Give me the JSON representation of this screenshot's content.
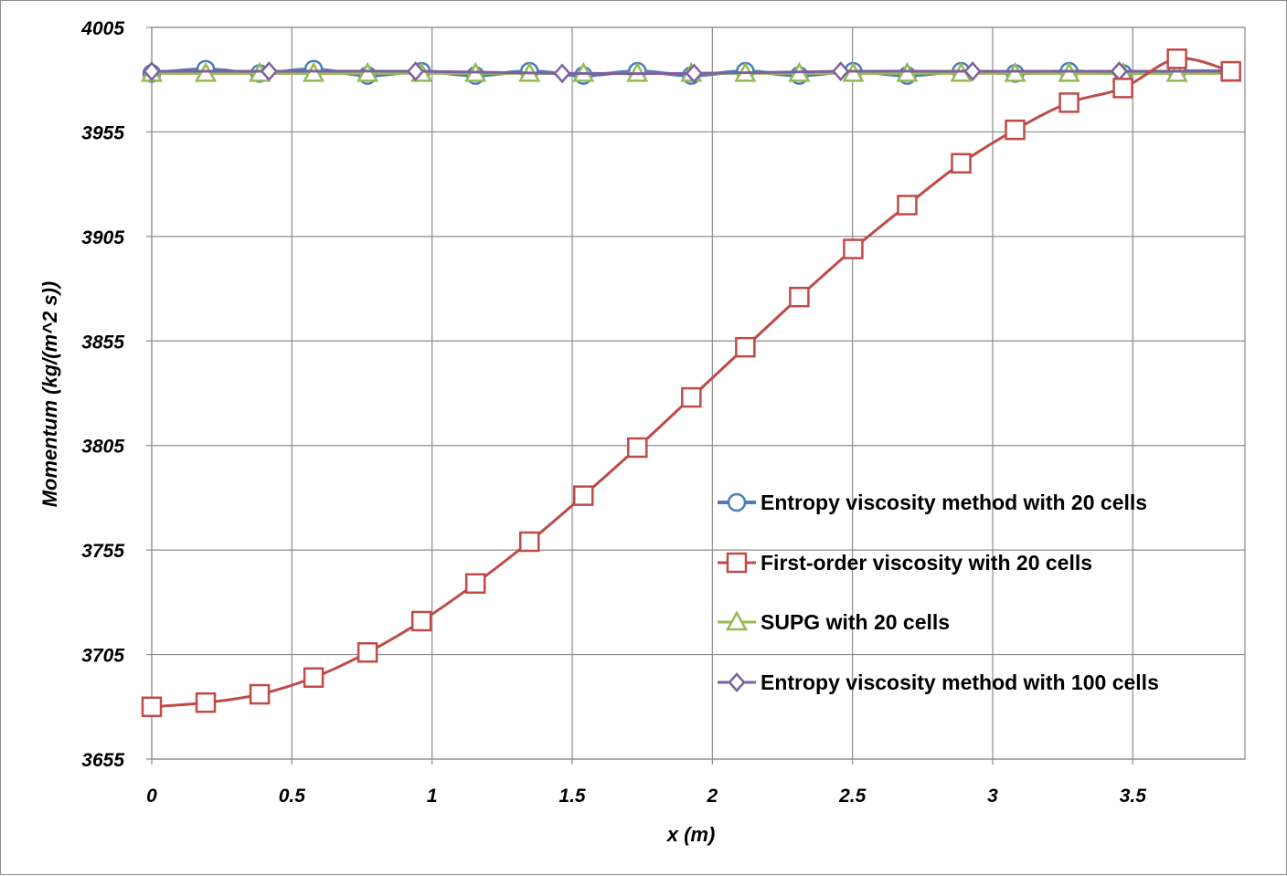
{
  "chart_data": {
    "type": "line",
    "title": "",
    "xlabel": "x (m)",
    "ylabel": "Momentum (kg/(m^2 s))",
    "xlim": [
      0,
      3.9
    ],
    "ylim": [
      3655,
      4005
    ],
    "xticks": [
      0,
      0.5,
      1,
      1.5,
      2,
      2.5,
      3,
      3.5
    ],
    "xtick_labels": [
      "0",
      "0.5",
      "1",
      "1.5",
      "2",
      "2.5",
      "3",
      "3.5"
    ],
    "yticks": [
      3655,
      3705,
      3755,
      3805,
      3855,
      3905,
      3955,
      4005
    ],
    "ytick_labels": [
      "3655",
      "3705",
      "3755",
      "3805",
      "3855",
      "3905",
      "3955",
      "4005"
    ],
    "grid": true,
    "legend_position": "center-right",
    "series": [
      {
        "name": "Entropy viscosity method with 20 cells",
        "color": "#4a7ebb",
        "marker": "circle",
        "line_width": 4,
        "x": [
          0,
          0.1925,
          0.385,
          0.5775,
          0.77,
          0.9625,
          1.155,
          1.3475,
          1.54,
          1.7325,
          1.925,
          2.1175,
          2.31,
          2.5025,
          2.695,
          2.8875,
          3.08,
          3.2725,
          3.465,
          3.6575,
          3.85
        ],
        "y": [
          3983,
          3985,
          3983,
          3985,
          3982,
          3984,
          3982,
          3984,
          3982,
          3984,
          3982,
          3984,
          3982,
          3984,
          3982,
          3984,
          3983,
          3984,
          3983,
          3984,
          3984
        ]
      },
      {
        "name": "First-order viscosity with 20 cells",
        "color": "#be4b48",
        "marker": "square",
        "line_width": 3,
        "x": [
          0,
          0.1925,
          0.385,
          0.5775,
          0.77,
          0.9625,
          1.155,
          1.3475,
          1.54,
          1.7325,
          1.925,
          2.1175,
          2.31,
          2.5025,
          2.695,
          2.8875,
          3.08,
          3.2725,
          3.465,
          3.6575,
          3.85
        ],
        "y": [
          3680,
          3682,
          3686,
          3694,
          3706,
          3721,
          3739,
          3759,
          3781,
          3804,
          3828,
          3852,
          3876,
          3899,
          3920,
          3940,
          3956,
          3969,
          3976,
          3990,
          3984
        ]
      },
      {
        "name": "SUPG with 20 cells",
        "color": "#98b954",
        "marker": "triangle",
        "line_width": 3,
        "x": [
          0,
          0.1925,
          0.385,
          0.5775,
          0.77,
          0.9625,
          1.155,
          1.3475,
          1.54,
          1.7325,
          1.925,
          2.1175,
          2.31,
          2.5025,
          2.695,
          2.8875,
          3.08,
          3.2725,
          3.465,
          3.6575,
          3.85
        ],
        "y": [
          3983,
          3983,
          3983,
          3983,
          3983,
          3983,
          3983,
          3983,
          3983,
          3983,
          3983,
          3983,
          3983,
          3983,
          3983,
          3983,
          3983,
          3983,
          3983,
          3983,
          3983
        ]
      },
      {
        "name": "Entropy viscosity method with 100 cells",
        "color": "#7d60a0",
        "marker": "diamond",
        "line_width": 3,
        "x": [
          0,
          0.4184,
          0.9413,
          1.4642,
          1.9348,
          2.4577,
          2.9284,
          3.4513,
          3.85
        ],
        "y": [
          3984,
          3984,
          3984,
          3983,
          3983,
          3984,
          3984,
          3984,
          3984
        ]
      }
    ]
  }
}
